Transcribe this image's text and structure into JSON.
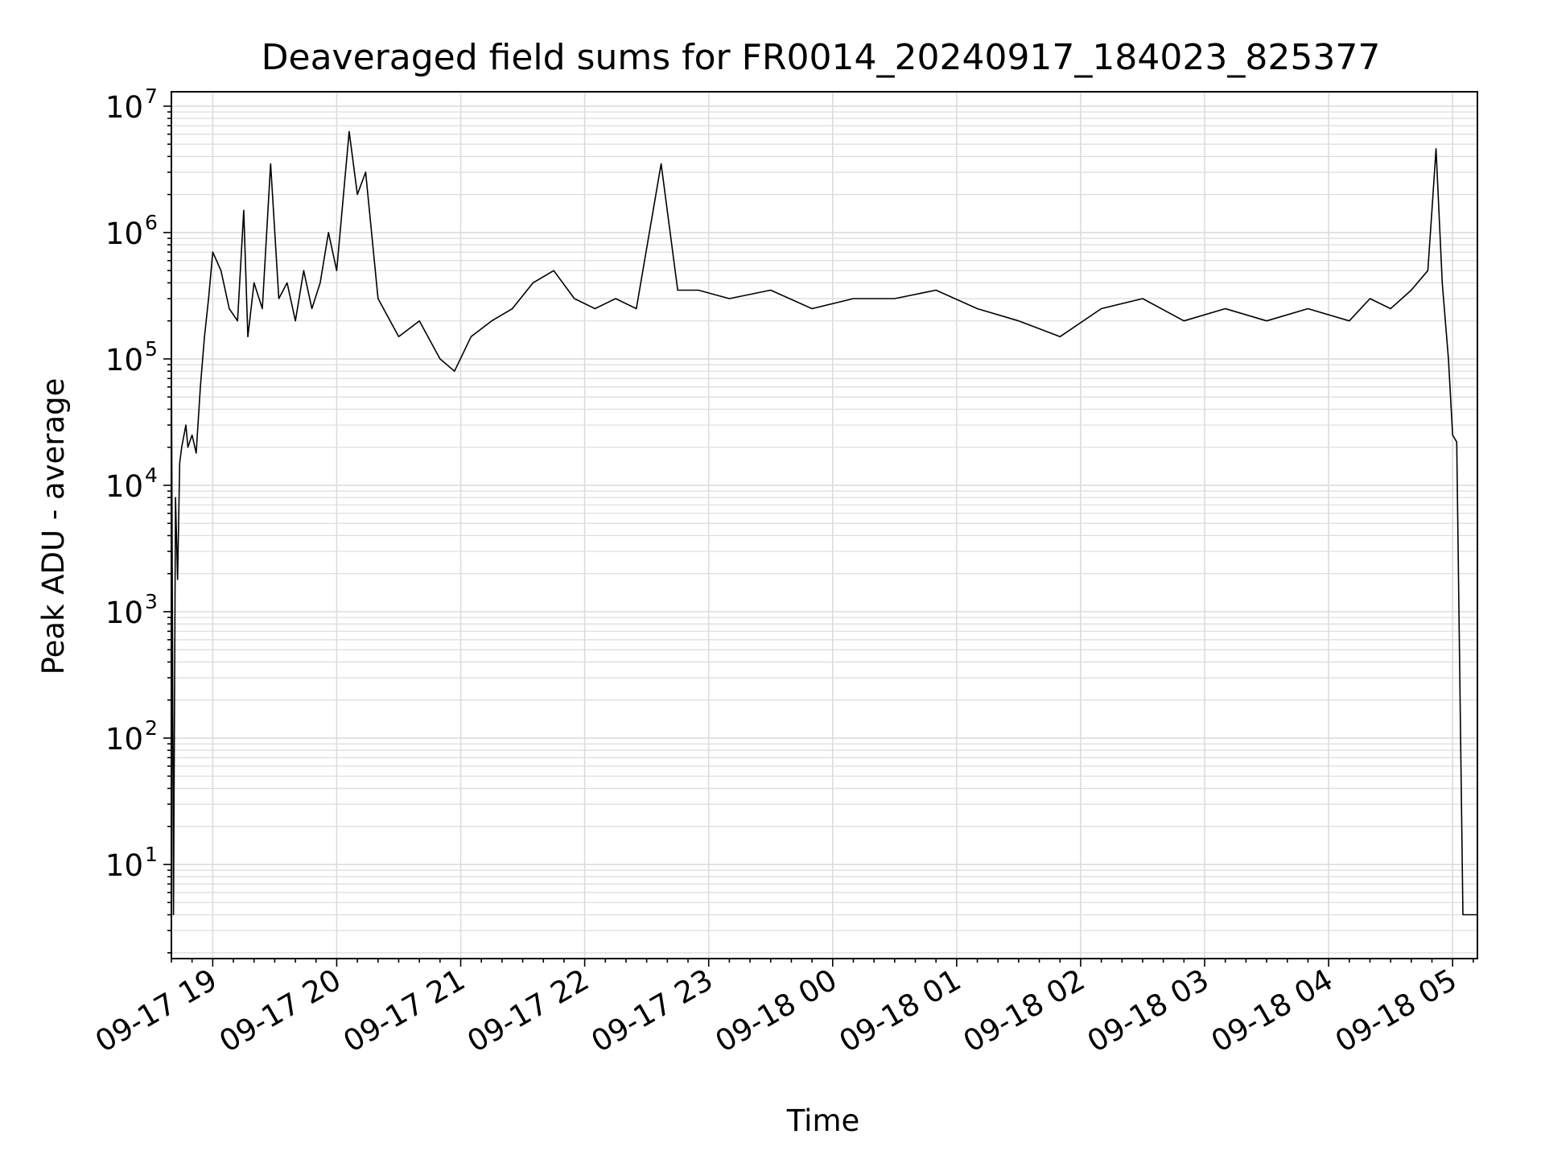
{
  "chart_data": {
    "type": "line",
    "title": "Deaveraged field sums for FR0014_20240917_184023_825377",
    "xlabel": "Time",
    "ylabel": "Peak ADU - average",
    "yscale": "log",
    "ylim": [
      1.8,
      13000000
    ],
    "xlim": [
      "2024-09-17 18:40",
      "2024-09-18 05:12"
    ],
    "grid": "both (major and minor), light grey",
    "x_ticks": [
      "09-17 19",
      "09-17 20",
      "09-17 21",
      "09-17 22",
      "09-17 23",
      "09-18 00",
      "09-18 01",
      "09-18 02",
      "09-18 03",
      "09-18 04",
      "09-18 05"
    ],
    "y_ticks": [
      {
        "value": 10,
        "base": "10",
        "exp": "1"
      },
      {
        "value": 100,
        "base": "10",
        "exp": "2"
      },
      {
        "value": 1000,
        "base": "10",
        "exp": "3"
      },
      {
        "value": 10000,
        "base": "10",
        "exp": "4"
      },
      {
        "value": 100000,
        "base": "10",
        "exp": "5"
      },
      {
        "value": 1000000,
        "base": "10",
        "exp": "6"
      },
      {
        "value": 10000000,
        "base": "10",
        "exp": "7"
      }
    ],
    "line_color": "#000000",
    "series": [
      {
        "x": [
          "2024-09-17 18:40",
          "2024-09-17 18:41",
          "2024-09-17 18:42",
          "2024-09-17 18:43",
          "2024-09-17 18:44",
          "2024-09-17 18:45",
          "2024-09-17 18:47",
          "2024-09-17 18:48",
          "2024-09-17 18:50",
          "2024-09-17 18:52",
          "2024-09-17 18:54",
          "2024-09-17 18:56",
          "2024-09-17 18:58",
          "2024-09-17 19:00",
          "2024-09-17 19:04",
          "2024-09-17 19:08",
          "2024-09-17 19:12",
          "2024-09-17 19:15",
          "2024-09-17 19:17",
          "2024-09-17 19:20",
          "2024-09-17 19:24",
          "2024-09-17 19:28",
          "2024-09-17 19:32",
          "2024-09-17 19:36",
          "2024-09-17 19:40",
          "2024-09-17 19:44",
          "2024-09-17 19:48",
          "2024-09-17 19:52",
          "2024-09-17 19:56",
          "2024-09-17 20:00",
          "2024-09-17 20:06",
          "2024-09-17 20:10",
          "2024-09-17 20:14",
          "2024-09-17 20:20",
          "2024-09-17 20:30",
          "2024-09-17 20:40",
          "2024-09-17 20:50",
          "2024-09-17 20:57",
          "2024-09-17 21:05",
          "2024-09-17 21:15",
          "2024-09-17 21:25",
          "2024-09-17 21:35",
          "2024-09-17 21:45",
          "2024-09-17 21:55",
          "2024-09-17 22:05",
          "2024-09-17 22:15",
          "2024-09-17 22:25",
          "2024-09-17 22:37",
          "2024-09-17 22:45",
          "2024-09-17 22:55",
          "2024-09-17 23:10",
          "2024-09-17 23:30",
          "2024-09-17 23:50",
          "2024-09-18 00:10",
          "2024-09-18 00:30",
          "2024-09-18 00:50",
          "2024-09-18 01:10",
          "2024-09-18 01:30",
          "2024-09-18 01:50",
          "2024-09-18 02:10",
          "2024-09-18 02:30",
          "2024-09-18 02:50",
          "2024-09-18 03:10",
          "2024-09-18 03:30",
          "2024-09-18 03:50",
          "2024-09-18 04:10",
          "2024-09-18 04:20",
          "2024-09-18 04:30",
          "2024-09-18 04:40",
          "2024-09-18 04:48",
          "2024-09-18 04:50",
          "2024-09-18 04:52",
          "2024-09-18 04:55",
          "2024-09-18 04:58",
          "2024-09-18 05:00",
          "2024-09-18 05:02",
          "2024-09-18 05:03",
          "2024-09-18 05:05",
          "2024-09-18 05:12"
        ],
        "y": [
          130000,
          4,
          8000,
          1800,
          15000,
          20000,
          30000,
          20000,
          25000,
          18000,
          60000,
          150000,
          300000,
          700000,
          500000,
          250000,
          200000,
          1500000,
          150000,
          400000,
          250000,
          3500000,
          300000,
          400000,
          200000,
          500000,
          250000,
          400000,
          1000000,
          500000,
          6300000,
          2000000,
          3000000,
          300000,
          150000,
          200000,
          100000,
          80000,
          150000,
          200000,
          250000,
          400000,
          500000,
          300000,
          250000,
          300000,
          250000,
          3500000,
          350000,
          350000,
          300000,
          350000,
          250000,
          300000,
          300000,
          350000,
          250000,
          200000,
          150000,
          250000,
          300000,
          200000,
          250000,
          200000,
          250000,
          200000,
          300000,
          250000,
          350000,
          500000,
          1500000,
          4600000,
          400000,
          100000,
          25000,
          22000,
          1200,
          4,
          4
        ]
      }
    ]
  }
}
